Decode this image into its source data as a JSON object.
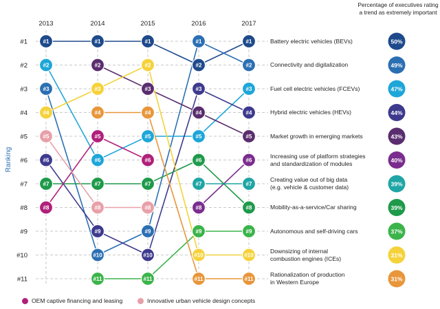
{
  "chart_data": {
    "type": "line",
    "subtype": "bump-chart",
    "ylabel": "Ranking",
    "x": [
      "2013",
      "2014",
      "2015",
      "2016",
      "2017"
    ],
    "rank_labels": [
      "#1",
      "#2",
      "#3",
      "#4",
      "#5",
      "#6",
      "#7",
      "#8",
      "#9",
      "#10",
      "#11"
    ],
    "header": "Percentage of executives rating a trend as extremely important",
    "series": [
      {
        "name": "Battery electric vehicles (BEVs)",
        "color": "#1e4a8c",
        "ranks": [
          1,
          1,
          1,
          2,
          1
        ],
        "pct": "50%"
      },
      {
        "name": "Connectivity and digitalization",
        "color": "#2b6fb3",
        "ranks": [
          3,
          10,
          9,
          1,
          2
        ],
        "pct": "49%"
      },
      {
        "name": "Fuel cell electric vehicles (FCEVs)",
        "color": "#1ea6d8",
        "ranks": [
          2,
          6,
          5,
          5,
          3
        ],
        "pct": "47%"
      },
      {
        "name": "Hybrid electric vehicles (HEVs)",
        "color": "#3d3a8e",
        "ranks": [
          6,
          9,
          10,
          3,
          4
        ],
        "pct": "44%"
      },
      {
        "name": "Market growth in emerging markets",
        "color": "#5a2d6e",
        "ranks": [
          null,
          2,
          3,
          4,
          5
        ],
        "pct": "43%"
      },
      {
        "name": "Increasing use of platform strategies and standardization of modules",
        "color": "#7b2d8e",
        "ranks": [
          null,
          null,
          null,
          8,
          6
        ],
        "pct": "40%"
      },
      {
        "name": "Creating value out of big data (e.g. vehicle & customer data)",
        "color": "#1fa5a5",
        "ranks": [
          null,
          null,
          null,
          7,
          7
        ],
        "pct": "39%"
      },
      {
        "name": "Mobility-as-a-service/Car sharing",
        "color": "#1e9a4a",
        "ranks": [
          7,
          7,
          7,
          6,
          8
        ],
        "pct": "39%"
      },
      {
        "name": "Autonomous and self-driving cars",
        "color": "#3bb44a",
        "ranks": [
          null,
          11,
          11,
          9,
          9
        ],
        "pct": "37%"
      },
      {
        "name": "Downsizing of internal combustion engines (ICEs)",
        "color": "#f5d23a",
        "ranks": [
          4,
          3,
          2,
          10,
          10
        ],
        "pct": "31%"
      },
      {
        "name": "Rationalization of production in Western Europe",
        "color": "#e8963a",
        "ranks": [
          null,
          4,
          4,
          11,
          11
        ],
        "pct": "31%"
      },
      {
        "name": "OEM captive financing and leasing",
        "color": "#b0207a",
        "ranks": [
          8,
          5,
          6,
          null,
          null
        ],
        "pct": null
      },
      {
        "name": "Innovative urban vehicle design concepts",
        "color": "#e8a0a8",
        "ranks": [
          5,
          8,
          8,
          null,
          null
        ],
        "pct": null
      }
    ],
    "right_labels": [
      [
        "Battery electric vehicles (BEVs)"
      ],
      [
        "Connectivity and digitalization"
      ],
      [
        "Fuel cell electric vehicles (FCEVs)"
      ],
      [
        "Hybrid electric vehicles (HEVs)"
      ],
      [
        "Market growth in emerging markets"
      ],
      [
        "Increasing use of platform strategies",
        "and standardization of modules"
      ],
      [
        "Creating value out of big data",
        "(e.g. vehicle & customer data)"
      ],
      [
        "Mobility-as-a-service/Car sharing"
      ],
      [
        "Autonomous and self-driving cars"
      ],
      [
        "Downsizing of internal",
        "combustion engines (ICEs)"
      ],
      [
        "Rationalization of production",
        "in Western Europe"
      ]
    ],
    "legend_extra": [
      {
        "name": "OEM captive financing and leasing",
        "color": "#b0207a"
      },
      {
        "name": "Innovative urban vehicle design concepts",
        "color": "#e8a0a8"
      }
    ]
  }
}
